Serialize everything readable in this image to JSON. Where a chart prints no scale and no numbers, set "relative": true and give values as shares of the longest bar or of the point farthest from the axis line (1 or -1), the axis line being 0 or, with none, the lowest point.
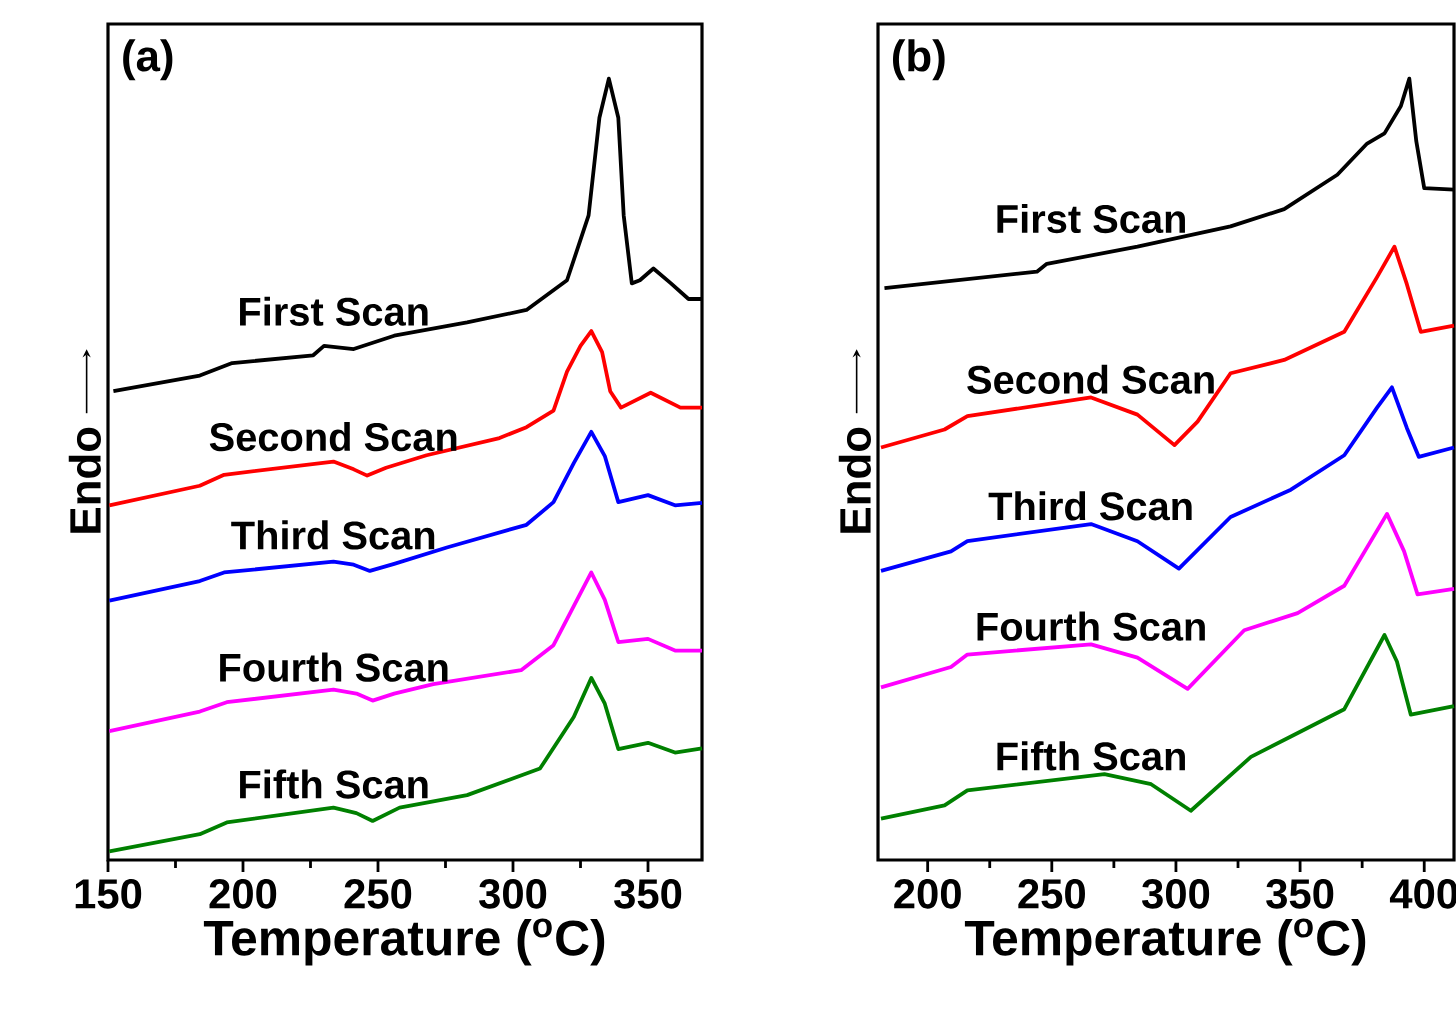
{
  "chart_data": [
    {
      "type": "line",
      "title": "(a)",
      "xlabel": "Temperature ($^{o}$C)",
      "ylabel": "Endo",
      "relative": true,
      "xlim": [
        150,
        370
      ],
      "xticks": [
        150,
        200,
        250,
        300,
        350
      ],
      "series": [
        {
          "name": "First Scan",
          "color": "#000000",
          "x": [
            152,
            184,
            196,
            226,
            230,
            241,
            256,
            283,
            305,
            320,
            328,
            332,
            335.5,
            339,
            341,
            344,
            347,
            352,
            358.5,
            365,
            370
          ],
          "values": [
            0.6,
            0.62,
            0.636,
            0.646,
            0.658,
            0.654,
            0.671,
            0.688,
            0.704,
            0.742,
            0.825,
            0.95,
            1.0,
            0.95,
            0.825,
            0.738,
            0.742,
            0.757,
            0.738,
            0.718,
            0.718
          ]
        },
        {
          "name": "Second Scan",
          "color": "#ff0000",
          "x": [
            150.5,
            184,
            193,
            233.5,
            241,
            246,
            253,
            268,
            295,
            305,
            315,
            320,
            325,
            329,
            333,
            336,
            340,
            351,
            362,
            370
          ],
          "values": [
            0.454,
            0.479,
            0.493,
            0.51,
            0.5,
            0.492,
            0.502,
            0.518,
            0.54,
            0.554,
            0.575,
            0.625,
            0.658,
            0.677,
            0.65,
            0.6,
            0.579,
            0.598,
            0.579,
            0.579
          ]
        },
        {
          "name": "Third Scan",
          "color": "#0000ff",
          "x": [
            150.5,
            184,
            193,
            233.5,
            241,
            247,
            256,
            275.5,
            305,
            315,
            322.5,
            329,
            334,
            339,
            350,
            360,
            370
          ],
          "values": [
            0.332,
            0.357,
            0.368,
            0.382,
            0.378,
            0.37,
            0.379,
            0.4,
            0.429,
            0.458,
            0.508,
            0.548,
            0.517,
            0.458,
            0.467,
            0.454,
            0.457
          ]
        },
        {
          "name": "Fourth Scan",
          "color": "#ff00ff",
          "x": [
            150.5,
            184,
            194,
            233.5,
            242,
            248,
            256,
            270.5,
            303,
            315,
            322.5,
            329,
            334,
            339,
            350,
            360,
            370
          ],
          "values": [
            0.165,
            0.19,
            0.202,
            0.218,
            0.213,
            0.204,
            0.213,
            0.225,
            0.243,
            0.275,
            0.325,
            0.368,
            0.333,
            0.279,
            0.283,
            0.268,
            0.268
          ]
        },
        {
          "name": "Fifth Scan",
          "color": "#008000",
          "x": [
            150.5,
            184,
            194,
            233.5,
            242,
            248,
            258,
            283,
            310,
            322.5,
            329,
            334,
            339,
            350,
            360,
            370
          ],
          "values": [
            0.011,
            0.033,
            0.048,
            0.067,
            0.06,
            0.05,
            0.067,
            0.083,
            0.117,
            0.183,
            0.233,
            0.2,
            0.142,
            0.15,
            0.1375,
            0.143
          ]
        }
      ]
    },
    {
      "type": "line",
      "title": "(b)",
      "xlabel": "Temperature ($^{o}$C)",
      "ylabel": "Endo",
      "relative": true,
      "xlim": [
        180,
        412
      ],
      "xticks": [
        200,
        250,
        300,
        350,
        400
      ],
      "series": [
        {
          "name": "First Scan",
          "color": "#000000",
          "x": [
            182.6,
            244,
            248,
            284.5,
            322,
            343.6,
            365,
            377,
            384,
            390.6,
            394,
            396.8,
            400,
            412
          ],
          "values": [
            0.732,
            0.753,
            0.763,
            0.785,
            0.811,
            0.833,
            0.877,
            0.917,
            0.93,
            0.965,
            1.0,
            0.92,
            0.86,
            0.858
          ]
        },
        {
          "name": "Second Scan",
          "color": "#ff0000",
          "x": [
            181.2,
            206.8,
            216,
            265.8,
            284.5,
            299.4,
            308.7,
            322,
            343.6,
            367.8,
            381,
            388,
            393,
            398.6,
            412
          ],
          "values": [
            0.528,
            0.551,
            0.568,
            0.592,
            0.57,
            0.531,
            0.561,
            0.623,
            0.64,
            0.676,
            0.746,
            0.785,
            0.737,
            0.676,
            0.684
          ]
        },
        {
          "name": "Third Scan",
          "color": "#0000ff",
          "x": [
            181.2,
            209.4,
            216,
            265.8,
            284.5,
            301.2,
            322,
            346.3,
            367.8,
            381,
            387,
            393,
            397.8,
            412
          ],
          "values": [
            0.37,
            0.395,
            0.408,
            0.43,
            0.408,
            0.373,
            0.439,
            0.474,
            0.518,
            0.579,
            0.605,
            0.553,
            0.516,
            0.528
          ]
        },
        {
          "name": "Fourth Scan",
          "color": "#ff00ff",
          "x": [
            181.2,
            209.4,
            216,
            265.8,
            284.5,
            304.7,
            327.5,
            349,
            367.8,
            385,
            391.9,
            397.3,
            412
          ],
          "values": [
            0.221,
            0.247,
            0.263,
            0.276,
            0.259,
            0.219,
            0.294,
            0.316,
            0.351,
            0.443,
            0.395,
            0.34,
            0.347
          ]
        },
        {
          "name": "Fifth Scan",
          "color": "#008000",
          "x": [
            181.2,
            206.8,
            216,
            271.2,
            290,
            306,
            330.2,
            346.3,
            367.8,
            384,
            389,
            394.6,
            412
          ],
          "values": [
            0.053,
            0.07,
            0.089,
            0.11,
            0.097,
            0.063,
            0.132,
            0.158,
            0.193,
            0.288,
            0.254,
            0.186,
            0.197
          ]
        }
      ]
    }
  ]
}
